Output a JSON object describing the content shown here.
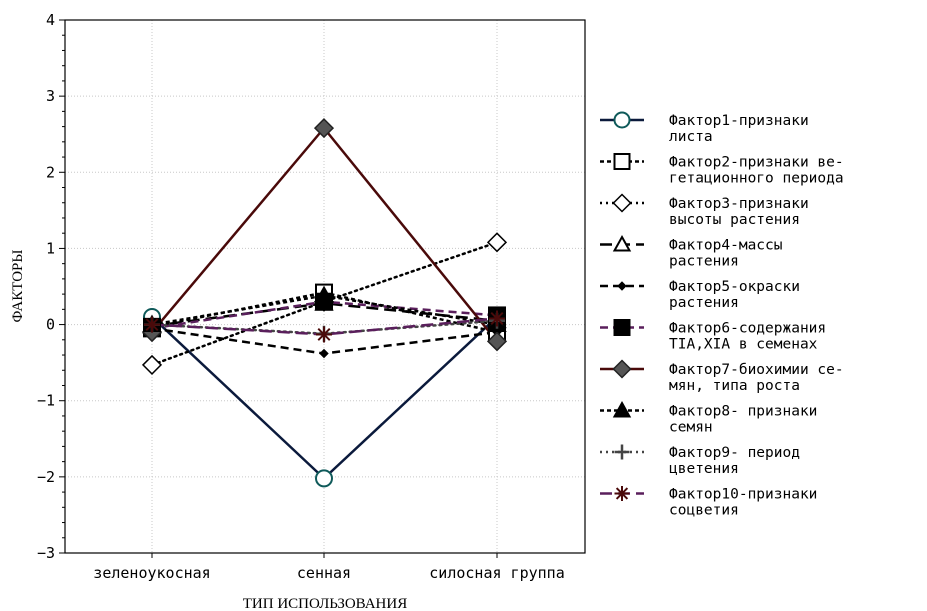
{
  "chart_data": {
    "type": "line",
    "xlabel": "ТИП ИСПОЛЬЗОВАНИЯ",
    "ylabel": "ФАКТОРЫ",
    "categories": [
      "зеленоукосная",
      "сенная",
      "силосная группа"
    ],
    "ylim": [
      -3,
      4
    ],
    "yticks": [
      -3,
      -2,
      -1,
      0,
      1,
      2,
      3,
      4
    ],
    "grid": true,
    "legend_position": "right",
    "series": [
      {
        "name": "Фактор1-признаки листа",
        "legend_lines": [
          "Фактор1-признаки",
          "листа"
        ],
        "values": [
          0.1,
          -2.02,
          0.1
        ],
        "color": "#0b1a3c",
        "dash": "solid",
        "marker": "circle-open",
        "marker_color": "#0f5a5a"
      },
      {
        "name": "Фактор2-признаки вегетационного периода",
        "legend_lines": [
          "Фактор2-признаки ве-",
          "гетационного периода"
        ],
        "values": [
          -0.03,
          0.42,
          -0.1
        ],
        "color": "#000000",
        "dash": "dense-dash",
        "marker": "square-open",
        "marker_color": "#000000"
      },
      {
        "name": "Фактор3-признаки высоты растения",
        "legend_lines": [
          "Фактор3-признаки",
          "высоты растения"
        ],
        "values": [
          -0.53,
          0.3,
          1.08
        ],
        "color": "#000000",
        "dash": "dot",
        "marker": "diamond-open",
        "marker_color": "#000000"
      },
      {
        "name": "Фактор4-массы растения",
        "legend_lines": [
          "Фактор4-массы",
          "растения"
        ],
        "values": [
          -0.02,
          0.28,
          0.05
        ],
        "color": "#000000",
        "dash": "long-dash",
        "marker": "triangle-open",
        "marker_color": "#000000"
      },
      {
        "name": "Фактор5-окраски растения",
        "legend_lines": [
          "Фактор5-окраски",
          "растения"
        ],
        "values": [
          -0.05,
          -0.38,
          -0.1
        ],
        "color": "#000000",
        "dash": "dash",
        "marker": "dot-filled",
        "marker_color": "#000000"
      },
      {
        "name": "Фактор6-содержания TIA, XIA в семенах",
        "legend_lines": [
          "Фактор6-содержания",
          "TIA,XIA в семенах"
        ],
        "values": [
          -0.05,
          0.3,
          0.12
        ],
        "color": "#5a1f5c",
        "dash": "dash",
        "marker": "square-filled",
        "marker_color": "#000000"
      },
      {
        "name": "Фактор7-биохимии семян, типа роста",
        "legend_lines": [
          "Фактор7-биохимии се-",
          "мян, типа роста"
        ],
        "values": [
          -0.1,
          2.58,
          -0.22
        ],
        "color": "#4a0a0a",
        "dash": "solid",
        "marker": "diamond-filled",
        "marker_color": "#555555"
      },
      {
        "name": "Фактор8- признаки семян",
        "legend_lines": [
          "Фактор8- признаки",
          "семян"
        ],
        "values": [
          0.0,
          0.38,
          0.0
        ],
        "color": "#000000",
        "dash": "dense-dash",
        "marker": "triangle-filled",
        "marker_color": "#000000"
      },
      {
        "name": "Фактор9- период цветения",
        "legend_lines": [
          "Фактор9- период",
          "цветения"
        ],
        "values": [
          0.0,
          -0.12,
          0.05
        ],
        "color": "#444444",
        "dash": "dot",
        "marker": "plus",
        "marker_color": "#444444"
      },
      {
        "name": "Фактор10-признаки соцветия",
        "legend_lines": [
          "Фактор10-признаки",
          "соцветия"
        ],
        "values": [
          0.0,
          -0.13,
          0.08
        ],
        "color": "#5a1f5c",
        "dash": "long-dash",
        "marker": "asterisk",
        "marker_color": "#4a0a0a"
      }
    ]
  }
}
